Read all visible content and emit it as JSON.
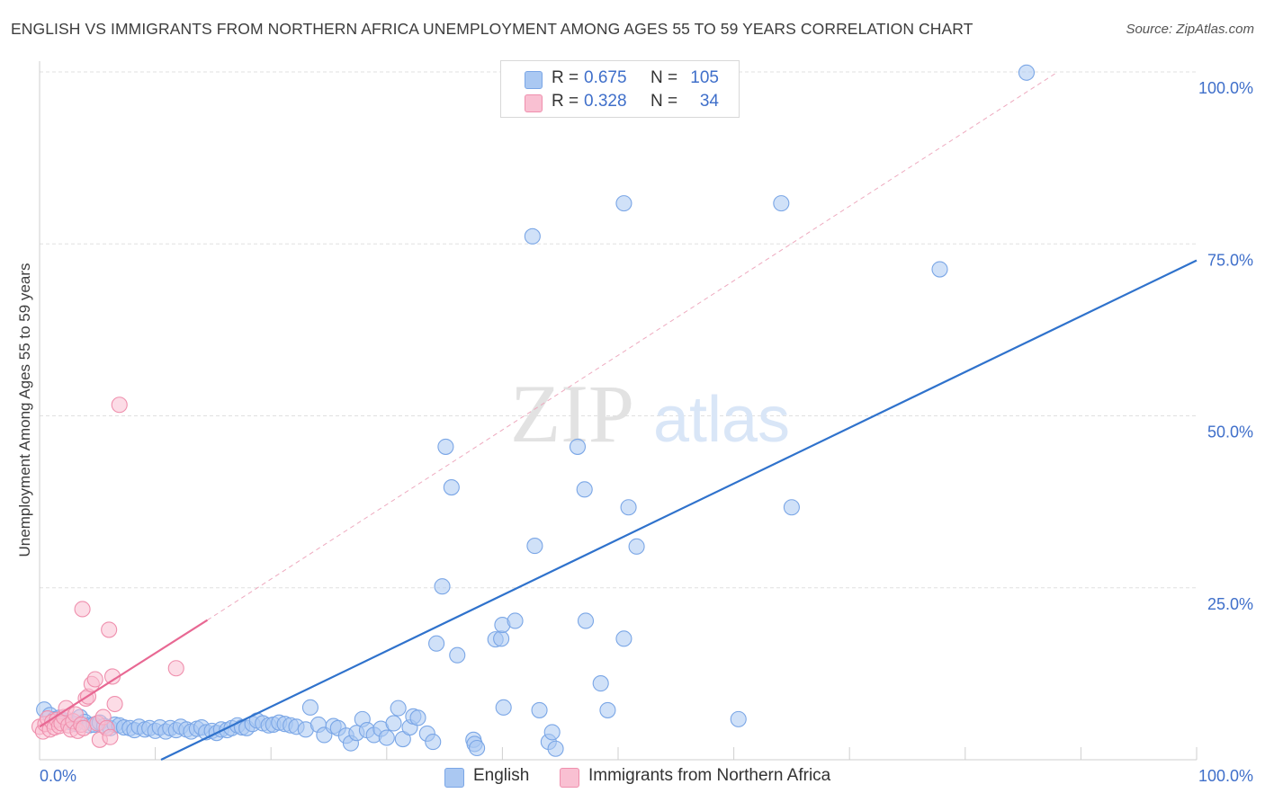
{
  "title": "ENGLISH VS IMMIGRANTS FROM NORTHERN AFRICA UNEMPLOYMENT AMONG AGES 55 TO 59 YEARS CORRELATION CHART",
  "source": "Source: ZipAtlas.com",
  "watermark": {
    "zip": "ZIP",
    "atlas": "atlas"
  },
  "legend": {
    "r_label": "R =",
    "n_label": "N =",
    "rows": [
      {
        "r": "0.675",
        "n": "105",
        "color": "#aac8f2",
        "border": "#7aa6e6"
      },
      {
        "r": "0.328",
        "n": "34",
        "color": "#f9c0d2",
        "border": "#ef8fad"
      }
    ]
  },
  "chart_data": {
    "type": "scatter",
    "title": "ENGLISH VS IMMIGRANTS FROM NORTHERN AFRICA UNEMPLOYMENT AMONG AGES 55 TO 59 YEARS CORRELATION CHART",
    "xlabel": "",
    "ylabel": "Unemployment Among Ages 55 to 59 years",
    "xlim": [
      0,
      100
    ],
    "ylim": [
      0,
      100
    ],
    "x_tick_labels": [
      "0.0%",
      "100.0%"
    ],
    "y_tick_labels": [
      "25.0%",
      "50.0%",
      "75.0%",
      "100.0%"
    ],
    "grid": true,
    "legend_position": "top-center",
    "series": [
      {
        "name": "English",
        "color": "#aac8f2",
        "stroke": "#7aa6e6",
        "line_color": "#2f72cc",
        "trend": {
          "x": [
            10.5,
            100
          ],
          "y": [
            0,
            72.6
          ]
        },
        "points": [
          [
            0.4,
            7.3
          ],
          [
            0.9,
            6.5
          ],
          [
            1.3,
            5.9
          ],
          [
            1.7,
            6.1
          ],
          [
            2.2,
            5.7
          ],
          [
            2.6,
            5.5
          ],
          [
            3.1,
            5.2
          ],
          [
            3.5,
            6.2
          ],
          [
            3.9,
            5.5
          ],
          [
            4.3,
            5.0
          ],
          [
            4.7,
            5.1
          ],
          [
            5.2,
            5.4
          ],
          [
            5.6,
            4.9
          ],
          [
            6.1,
            4.6
          ],
          [
            6.5,
            5.1
          ],
          [
            6.9,
            5.0
          ],
          [
            7.3,
            4.7
          ],
          [
            7.8,
            4.6
          ],
          [
            8.2,
            4.3
          ],
          [
            8.6,
            4.8
          ],
          [
            9.1,
            4.4
          ],
          [
            9.5,
            4.6
          ],
          [
            10.0,
            4.2
          ],
          [
            10.4,
            4.7
          ],
          [
            10.9,
            4.1
          ],
          [
            11.3,
            4.6
          ],
          [
            11.8,
            4.3
          ],
          [
            12.2,
            4.8
          ],
          [
            12.7,
            4.4
          ],
          [
            13.1,
            4.1
          ],
          [
            13.6,
            4.5
          ],
          [
            14.0,
            4.7
          ],
          [
            14.4,
            4.0
          ],
          [
            14.9,
            4.2
          ],
          [
            15.3,
            3.9
          ],
          [
            15.7,
            4.4
          ],
          [
            16.2,
            4.3
          ],
          [
            16.6,
            4.6
          ],
          [
            17.1,
            5.0
          ],
          [
            17.5,
            4.7
          ],
          [
            17.9,
            4.6
          ],
          [
            18.4,
            5.2
          ],
          [
            18.8,
            5.7
          ],
          [
            19.3,
            5.3
          ],
          [
            19.8,
            5.0
          ],
          [
            20.2,
            5.1
          ],
          [
            20.7,
            5.4
          ],
          [
            21.2,
            5.2
          ],
          [
            21.7,
            5.0
          ],
          [
            22.2,
            4.8
          ],
          [
            23.0,
            4.4
          ],
          [
            23.4,
            7.6
          ],
          [
            24.1,
            5.1
          ],
          [
            24.6,
            3.6
          ],
          [
            25.4,
            4.9
          ],
          [
            25.8,
            4.6
          ],
          [
            26.5,
            3.5
          ],
          [
            26.9,
            2.4
          ],
          [
            27.4,
            3.9
          ],
          [
            27.9,
            5.9
          ],
          [
            28.3,
            4.3
          ],
          [
            28.9,
            3.6
          ],
          [
            29.5,
            4.5
          ],
          [
            30.0,
            3.2
          ],
          [
            30.6,
            5.3
          ],
          [
            31.0,
            7.5
          ],
          [
            31.4,
            3.0
          ],
          [
            32.0,
            4.7
          ],
          [
            32.3,
            6.3
          ],
          [
            32.7,
            6.1
          ],
          [
            33.5,
            3.8
          ],
          [
            34.0,
            2.6
          ],
          [
            34.8,
            25.2
          ],
          [
            34.3,
            16.9
          ],
          [
            35.6,
            39.6
          ],
          [
            35.1,
            45.5
          ],
          [
            36.1,
            15.2
          ],
          [
            37.5,
            2.9
          ],
          [
            37.6,
            2.3
          ],
          [
            37.8,
            1.7
          ],
          [
            39.4,
            17.5
          ],
          [
            39.9,
            17.6
          ],
          [
            40.0,
            19.6
          ],
          [
            40.1,
            7.6
          ],
          [
            41.1,
            20.2
          ],
          [
            42.6,
            76.1
          ],
          [
            42.8,
            31.1
          ],
          [
            43.2,
            7.2
          ],
          [
            44.0,
            2.6
          ],
          [
            44.3,
            4.0
          ],
          [
            44.6,
            1.6
          ],
          [
            46.5,
            45.5
          ],
          [
            47.1,
            39.3
          ],
          [
            47.2,
            20.2
          ],
          [
            48.5,
            11.1
          ],
          [
            49.1,
            7.2
          ],
          [
            50.5,
            80.9
          ],
          [
            50.5,
            17.6
          ],
          [
            50.9,
            36.7
          ],
          [
            51.6,
            31.0
          ],
          [
            60.4,
            5.9
          ],
          [
            85.3,
            99.9
          ],
          [
            64.1,
            80.9
          ],
          [
            65.0,
            36.7
          ],
          [
            77.8,
            71.3
          ]
        ]
      },
      {
        "name": "Immigrants from Northern Africa",
        "color": "#f9c0d2",
        "stroke": "#ef8fad",
        "line_color": "#e86893",
        "trend": {
          "x": [
            0,
            14.5
          ],
          "y": [
            4.8,
            20.3
          ]
        },
        "points": [
          [
            0.0,
            4.8
          ],
          [
            0.3,
            4.1
          ],
          [
            0.5,
            5.2
          ],
          [
            0.7,
            6.0
          ],
          [
            0.9,
            4.4
          ],
          [
            1.1,
            5.5
          ],
          [
            1.3,
            4.7
          ],
          [
            1.5,
            5.8
          ],
          [
            1.7,
            4.9
          ],
          [
            1.9,
            5.3
          ],
          [
            2.1,
            6.2
          ],
          [
            2.3,
            7.5
          ],
          [
            2.5,
            5.0
          ],
          [
            2.7,
            4.4
          ],
          [
            2.9,
            5.6
          ],
          [
            3.1,
            6.6
          ],
          [
            3.3,
            4.2
          ],
          [
            3.6,
            5.1
          ],
          [
            3.8,
            4.6
          ],
          [
            4.0,
            8.9
          ],
          [
            4.2,
            9.2
          ],
          [
            4.5,
            11.0
          ],
          [
            4.8,
            11.7
          ],
          [
            5.0,
            5.3
          ],
          [
            5.2,
            2.9
          ],
          [
            5.5,
            6.2
          ],
          [
            5.8,
            4.6
          ],
          [
            6.1,
            3.3
          ],
          [
            6.3,
            12.1
          ],
          [
            6.5,
            8.1
          ],
          [
            3.7,
            21.9
          ],
          [
            6.0,
            18.9
          ],
          [
            6.9,
            51.6
          ],
          [
            11.8,
            13.3
          ]
        ]
      }
    ]
  }
}
